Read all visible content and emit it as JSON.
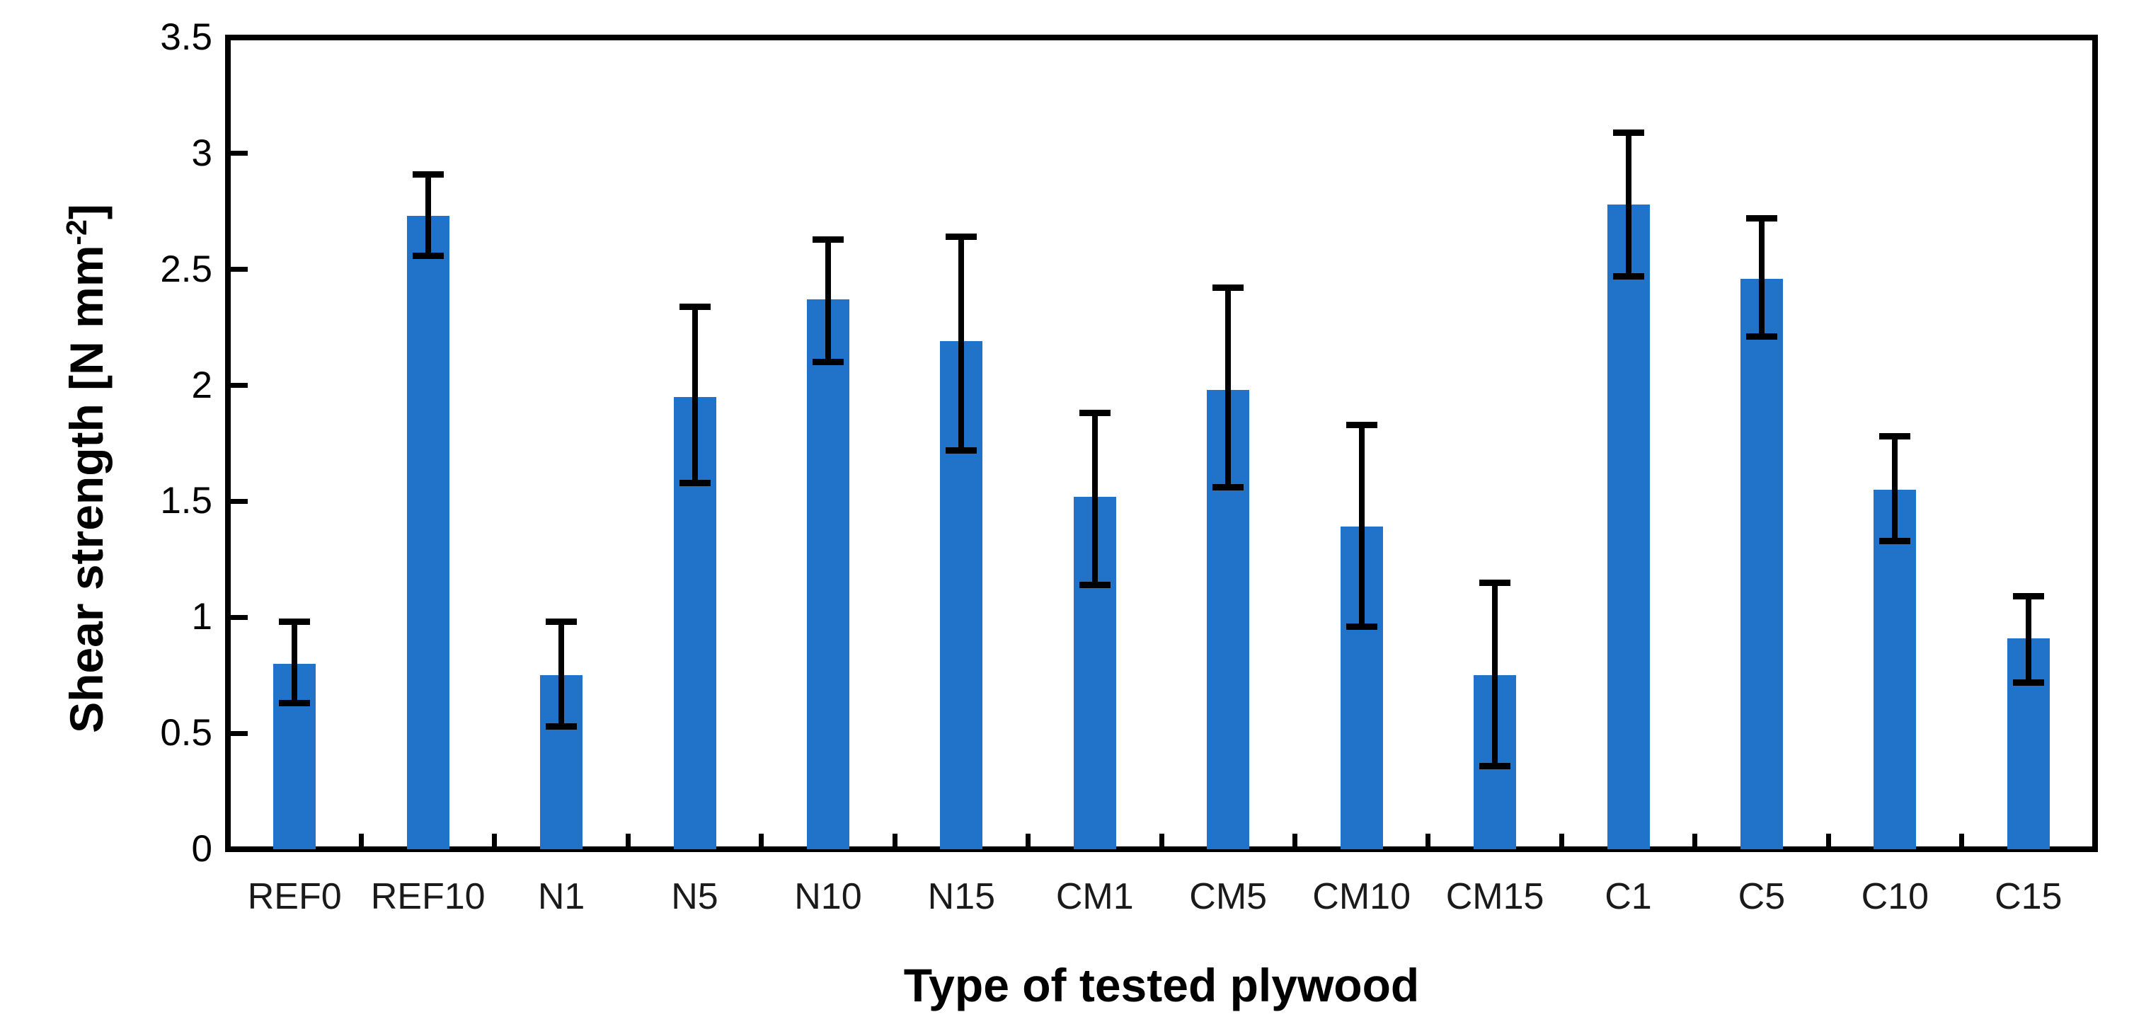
{
  "chart_data": {
    "type": "bar",
    "title": "",
    "xlabel": "Type of tested plywood",
    "ylabel": "Shear strength [N mm⁻²]",
    "ylabel_parts": {
      "main": "Shear strength [N mm",
      "sup": "-2",
      "close": "]"
    },
    "categories": [
      "REF0",
      "REF10",
      "N1",
      "N5",
      "N10",
      "N15",
      "CM1",
      "CM5",
      "CM10",
      "CM15",
      "C1",
      "C5",
      "C10",
      "C15"
    ],
    "series": [
      {
        "name": "Shear strength",
        "values": [
          0.8,
          2.73,
          0.75,
          1.95,
          2.37,
          2.19,
          1.52,
          1.98,
          1.39,
          0.75,
          2.78,
          2.46,
          1.55,
          0.91
        ],
        "error_low": [
          0.63,
          2.56,
          0.53,
          1.58,
          2.1,
          1.72,
          1.14,
          1.56,
          0.96,
          0.36,
          2.47,
          2.21,
          1.33,
          0.72
        ],
        "error_high": [
          0.98,
          2.91,
          0.98,
          2.34,
          2.63,
          2.64,
          1.88,
          2.42,
          1.83,
          1.15,
          3.09,
          2.72,
          1.78,
          1.09
        ]
      }
    ],
    "ylim": [
      0,
      3.5
    ],
    "y_ticks": [
      {
        "value": 0,
        "label": "0"
      },
      {
        "value": 0.5,
        "label": "0.5"
      },
      {
        "value": 1,
        "label": "1"
      },
      {
        "value": 1.5,
        "label": "1.5"
      },
      {
        "value": 2,
        "label": "2"
      },
      {
        "value": 2.5,
        "label": "2.5"
      },
      {
        "value": 3,
        "label": "3"
      },
      {
        "value": 3.5,
        "label": "3.5"
      }
    ],
    "grid": "off",
    "legend": "none",
    "tick_direction": "in",
    "bar_color": "#2173C9",
    "error_color": "#000000",
    "axis_color": "#000000"
  }
}
